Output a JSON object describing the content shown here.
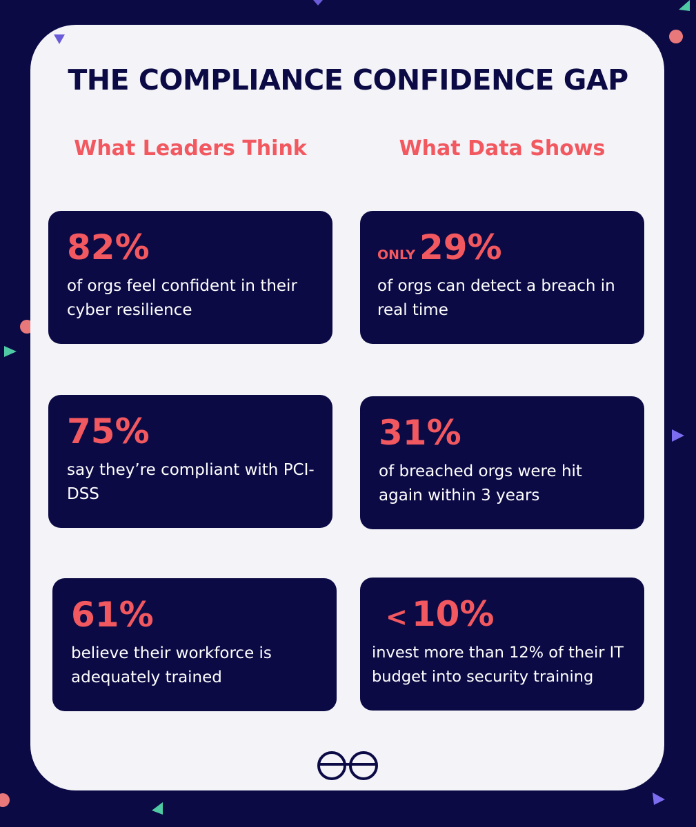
{
  "title": "THE COMPLIANCE CONFIDENCE GAP",
  "columns": {
    "left_heading": "What Leaders Think",
    "right_heading": "What Data Shows"
  },
  "stats": {
    "left": [
      {
        "value": "82%",
        "desc": "of orgs feel confident in their cyber resilience"
      },
      {
        "value": "75%",
        "desc": "say they’re compliant with PCI-DSS"
      },
      {
        "value": "61%",
        "desc": "believe their workforce is adequately trained"
      }
    ],
    "right": [
      {
        "prefix": "ONLY",
        "value": "29%",
        "desc": "of orgs can detect a breach in real time"
      },
      {
        "value": "31%",
        "desc": "of breached orgs were hit again within 3 years"
      },
      {
        "prefix": "<",
        "value": "10%",
        "desc": "invest more than 12% of their IT budget into security training"
      }
    ]
  },
  "logo_icon": "glasses-icon",
  "colors": {
    "background": "#0b0a45",
    "card": "#f3f3f8",
    "accent": "#f2585f",
    "text_light": "#ffffff"
  }
}
